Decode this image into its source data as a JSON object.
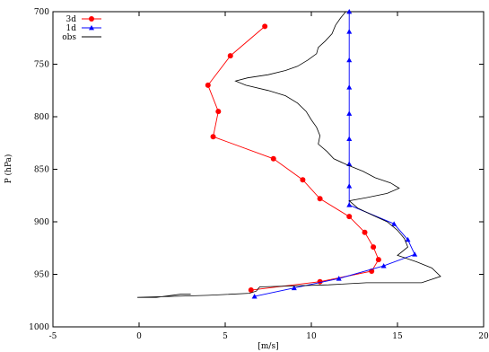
{
  "chart_data": {
    "type": "line",
    "xlabel": "[m/s]",
    "ylabel": "P (hPa)",
    "xlim": [
      -5,
      20
    ],
    "ylim": [
      700,
      1000
    ],
    "y_reversed": true,
    "grid": false,
    "legend_position": "top-left",
    "xticks": [
      -5,
      0,
      5,
      10,
      15,
      20
    ],
    "yticks": [
      700,
      750,
      800,
      850,
      900,
      950,
      1000
    ],
    "xtick_labels": [
      "-5",
      "0",
      "5",
      "10",
      "15",
      "20"
    ],
    "ytick_labels": [
      "700",
      "750",
      "800",
      "850",
      "900",
      "950",
      "1000"
    ],
    "series": [
      {
        "name": "3d",
        "color": "#ff0000",
        "marker": "circle",
        "points": [
          [
            7.3,
            714
          ],
          [
            5.3,
            742
          ],
          [
            4.0,
            770
          ],
          [
            4.6,
            795
          ],
          [
            4.3,
            819
          ],
          [
            7.8,
            840
          ],
          [
            9.5,
            860
          ],
          [
            10.5,
            878
          ],
          [
            12.2,
            895
          ],
          [
            13.1,
            910
          ],
          [
            13.6,
            924
          ],
          [
            13.9,
            936
          ],
          [
            13.5,
            947
          ],
          [
            10.5,
            957
          ],
          [
            6.5,
            965
          ]
        ]
      },
      {
        "name": "1d",
        "color": "#0000ff",
        "marker": "triangle",
        "points": [
          [
            12.2,
            700
          ],
          [
            12.2,
            719
          ],
          [
            12.2,
            746
          ],
          [
            12.2,
            772
          ],
          [
            12.2,
            797
          ],
          [
            12.2,
            821
          ],
          [
            12.2,
            845
          ],
          [
            12.2,
            866
          ],
          [
            12.2,
            884
          ],
          [
            14.8,
            902
          ],
          [
            15.6,
            917
          ],
          [
            16.0,
            931
          ],
          [
            14.2,
            942
          ],
          [
            11.6,
            954
          ],
          [
            9.0,
            963
          ],
          [
            6.7,
            971
          ]
        ]
      },
      {
        "name": "obs",
        "color": "#000000",
        "marker": "none",
        "points": [
          [
            12.0,
            700
          ],
          [
            11.7,
            706
          ],
          [
            11.4,
            713
          ],
          [
            11.2,
            721
          ],
          [
            10.8,
            728
          ],
          [
            10.4,
            734
          ],
          [
            10.3,
            740
          ],
          [
            9.8,
            746
          ],
          [
            9.2,
            752
          ],
          [
            8.5,
            756
          ],
          [
            7.5,
            760
          ],
          [
            6.3,
            763
          ],
          [
            5.6,
            766
          ],
          [
            6.2,
            770
          ],
          [
            7.5,
            775
          ],
          [
            8.5,
            780
          ],
          [
            9.2,
            787
          ],
          [
            9.7,
            795
          ],
          [
            10.0,
            803
          ],
          [
            10.3,
            810
          ],
          [
            10.5,
            818
          ],
          [
            10.4,
            826
          ],
          [
            10.9,
            833
          ],
          [
            11.3,
            840
          ],
          [
            12.1,
            846
          ],
          [
            13.0,
            852
          ],
          [
            13.7,
            858
          ],
          [
            14.6,
            863
          ],
          [
            15.1,
            868
          ],
          [
            14.4,
            873
          ],
          [
            13.2,
            877
          ],
          [
            12.2,
            880
          ],
          [
            12.7,
            887
          ],
          [
            13.6,
            894
          ],
          [
            14.4,
            900
          ],
          [
            15.0,
            908
          ],
          [
            15.4,
            916
          ],
          [
            15.6,
            924
          ],
          [
            15.0,
            932
          ],
          [
            16.1,
            938
          ],
          [
            17.0,
            944
          ],
          [
            17.5,
            952
          ],
          [
            16.4,
            958
          ],
          [
            14.9,
            958
          ],
          [
            13.2,
            958
          ],
          [
            11.0,
            960
          ],
          [
            7.0,
            962
          ],
          [
            6.8,
            966
          ],
          [
            6.4,
            968
          ],
          [
            4.0,
            970
          ],
          [
            1.8,
            971
          ],
          [
            -0.1,
            972
          ],
          [
            1.0,
            972
          ],
          [
            2.4,
            969
          ],
          [
            3.0,
            969
          ]
        ]
      }
    ]
  }
}
